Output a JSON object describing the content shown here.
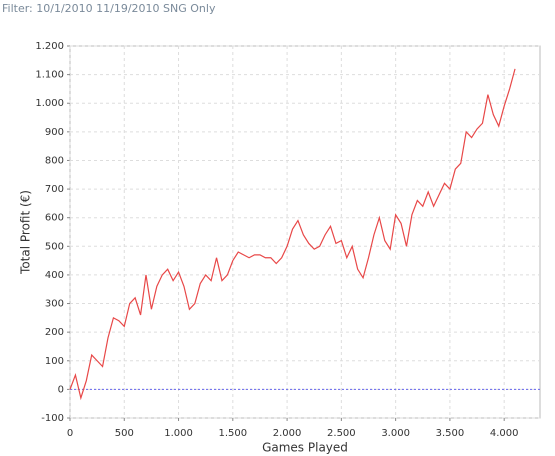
{
  "chart_data": {
    "type": "line",
    "subtitle": "Filter: 10/1/2010 11/19/2010 SNG Only",
    "x_label": "Games Played",
    "y_label": "Total Profit (€)",
    "x": [
      0,
      50,
      100,
      150,
      200,
      250,
      300,
      350,
      400,
      450,
      500,
      550,
      600,
      650,
      700,
      750,
      800,
      850,
      900,
      950,
      1000,
      1050,
      1100,
      1150,
      1200,
      1250,
      1300,
      1350,
      1400,
      1450,
      1500,
      1550,
      1600,
      1650,
      1700,
      1750,
      1800,
      1850,
      1900,
      1950,
      2000,
      2050,
      2100,
      2150,
      2200,
      2250,
      2300,
      2350,
      2400,
      2450,
      2500,
      2550,
      2600,
      2650,
      2700,
      2750,
      2800,
      2850,
      2900,
      2950,
      3000,
      3050,
      3100,
      3150,
      3200,
      3250,
      3300,
      3350,
      3400,
      3450,
      3500,
      3550,
      3600,
      3650,
      3700,
      3750,
      3800,
      3850,
      3900,
      3950,
      4000,
      4050,
      4100
    ],
    "series": [
      {
        "color": "#e84848",
        "values": [
          0,
          50,
          -30,
          30,
          120,
          100,
          80,
          180,
          250,
          240,
          220,
          300,
          320,
          260,
          400,
          280,
          360,
          400,
          420,
          380,
          410,
          360,
          280,
          300,
          370,
          400,
          380,
          460,
          380,
          400,
          450,
          480,
          470,
          460,
          470,
          470,
          460,
          460,
          440,
          460,
          500,
          560,
          590,
          540,
          510,
          490,
          500,
          540,
          570,
          510,
          520,
          460,
          500,
          420,
          390,
          460,
          540,
          600,
          520,
          490,
          610,
          580,
          500,
          610,
          660,
          640,
          690,
          640,
          680,
          720,
          700,
          770,
          790,
          900,
          880,
          910,
          930,
          1030,
          960,
          920,
          990,
          1050,
          1120
        ]
      }
    ],
    "reference_line": {
      "value": 0,
      "color": "#6666ee"
    },
    "xlim": [
      0,
      4330
    ],
    "ylim": [
      -100,
      1200
    ],
    "xticks": [
      0,
      500,
      {
        "value": 1000,
        "label": "1.000"
      },
      {
        "value": 1500,
        "label": "1.500"
      },
      {
        "value": 2000,
        "label": "2.000"
      },
      {
        "value": 2500,
        "label": "2.500"
      },
      {
        "value": 3000,
        "label": "3.000"
      },
      {
        "value": 3500,
        "label": "3.500"
      },
      {
        "value": 4000,
        "label": "4.000"
      }
    ],
    "yticks": [
      -100,
      0,
      100,
      200,
      300,
      400,
      500,
      600,
      700,
      800,
      900,
      {
        "value": 1000,
        "label": "1.000"
      },
      {
        "value": 1100,
        "label": "1.100"
      },
      {
        "value": 1200,
        "label": "1.200"
      }
    ],
    "grid": true
  }
}
